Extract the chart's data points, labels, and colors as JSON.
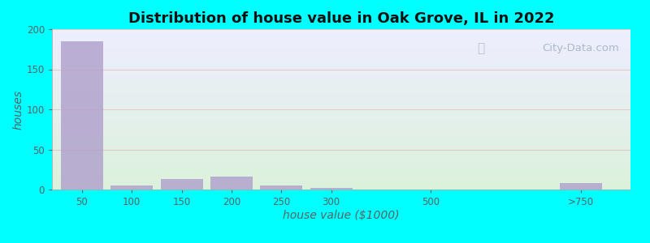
{
  "title": "Distribution of house value in Oak Grove, IL in 2022",
  "xlabel": "house value ($1000)",
  "ylabel": "houses",
  "bar_values": [
    185,
    5,
    13,
    16,
    5,
    2,
    0,
    8
  ],
  "bar_color": "#b0a0cc",
  "bar_positions": [
    1,
    2,
    3,
    4,
    5,
    6,
    8,
    11
  ],
  "bar_width": 0.85,
  "xtick_positions": [
    1,
    2,
    3,
    4,
    5,
    6,
    8,
    11
  ],
  "xtick_labels": [
    "50",
    "100",
    "150",
    "200",
    "250",
    "300",
    "500",
    ">750"
  ],
  "xlim": [
    0.4,
    12.0
  ],
  "ylim": [
    0,
    200
  ],
  "yticks": [
    0,
    50,
    100,
    150,
    200
  ],
  "background_outer": "#00FFFF",
  "background_top": "#eeeeff",
  "background_bottom": "#dff0df",
  "grid_color": "#e8c0c0",
  "grid_alpha": 0.8,
  "title_fontsize": 13,
  "axis_label_fontsize": 10,
  "tick_color": "#556666",
  "watermark_text": "City-Data.com",
  "watermark_color": "#aabcc8",
  "bar_alpha": 0.82
}
